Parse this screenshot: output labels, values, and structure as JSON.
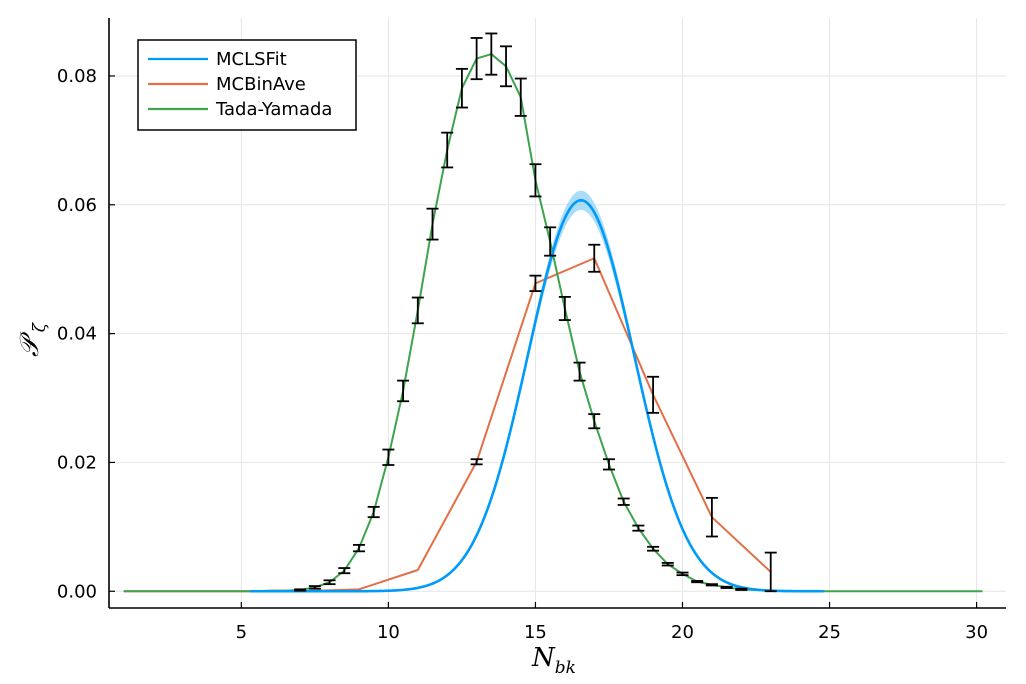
{
  "chart_data": {
    "type": "line",
    "title": "",
    "xlabel": {
      "main": "N",
      "sub": "bk"
    },
    "ylabel": {
      "main": "𝒫",
      "sub": "ζ"
    },
    "xlim": [
      0.5,
      31
    ],
    "ylim": [
      -0.0026,
      0.089
    ],
    "xticks": [
      5,
      10,
      15,
      20,
      25,
      30
    ],
    "xtick_labels": [
      "5",
      "10",
      "15",
      "20",
      "25",
      "30"
    ],
    "yticks": [
      0,
      0.02,
      0.04,
      0.06,
      0.08
    ],
    "ytick_labels": [
      "0.00",
      "0.02",
      "0.04",
      "0.06",
      "0.08"
    ],
    "grid": true,
    "legend_position": "top-left",
    "colors": {
      "mclsfit": "#009af9",
      "mcbinave": "#e26f46",
      "tada": "#3da44d",
      "errorbars": "#000000",
      "band": "#8fd0f5"
    },
    "series": [
      {
        "name": "MCLSFit",
        "kind": "curve",
        "gaussian": {
          "amplitude": 0.0607,
          "mean": 16.55,
          "sigma": 1.8
        },
        "x_range": [
          5.3,
          24.8
        ],
        "band_halfwidth_at_peak": 0.0015
      },
      {
        "name": "MCBinAve",
        "kind": "points",
        "x": [
          1.0,
          3.0,
          5.0,
          7.0,
          9.0,
          11.0,
          13.0,
          15.0,
          17.0,
          19.0,
          21.0,
          23.0
        ],
        "y": [
          0.0,
          0.0,
          0.0,
          0.0,
          0.0003,
          0.0033,
          0.0201,
          0.0478,
          0.0517,
          0.0305,
          0.0115,
          0.003
        ],
        "yerr": [
          0.0,
          0.0,
          0.0,
          0.0,
          0.0,
          0.0,
          0.0004,
          0.0012,
          0.0021,
          0.0028,
          0.003,
          0.003
        ]
      },
      {
        "name": "Tada-Yamada",
        "kind": "points",
        "x": [
          1.0,
          1.5,
          2.0,
          2.5,
          3.0,
          3.5,
          4.0,
          4.5,
          5.0,
          5.5,
          6.0,
          6.5,
          7.0,
          7.5,
          8.0,
          8.5,
          9.0,
          9.5,
          10.0,
          10.5,
          11.0,
          11.5,
          12.0,
          12.5,
          13.0,
          13.5,
          14.0,
          14.5,
          15.0,
          15.5,
          16.0,
          16.5,
          17.0,
          17.5,
          18.0,
          18.5,
          19.0,
          19.5,
          20.0,
          20.5,
          21.0,
          21.5,
          22.0,
          22.5,
          23.0,
          23.5,
          24.0,
          24.5,
          25.0,
          25.5,
          26.0,
          26.5,
          27.0,
          27.5,
          28.0,
          28.5,
          29.0,
          29.5,
          30.0,
          30.2
        ],
        "y": [
          0.0,
          0.0,
          0.0,
          0.0,
          0.0,
          0.0,
          0.0,
          0.0,
          0.0,
          0.0,
          0.0001,
          0.0001,
          0.0002,
          0.0006,
          0.0014,
          0.0032,
          0.0067,
          0.0123,
          0.0208,
          0.0311,
          0.0436,
          0.057,
          0.0685,
          0.0781,
          0.0827,
          0.0834,
          0.0815,
          0.0767,
          0.0638,
          0.0543,
          0.0439,
          0.0341,
          0.0264,
          0.0197,
          0.0139,
          0.0098,
          0.0066,
          0.0042,
          0.0027,
          0.0015,
          0.001,
          0.0006,
          0.0003,
          0.0002,
          0.0001,
          0.0,
          0.0,
          0.0,
          0.0,
          0.0,
          0.0,
          0.0,
          0.0,
          0.0,
          0.0,
          0.0,
          0.0,
          0.0,
          0.0,
          0.0
        ],
        "yerr": [
          0,
          0,
          0,
          0,
          0,
          0,
          0,
          0,
          0,
          0,
          0,
          0,
          0.0001,
          0.0002,
          0.0003,
          0.0004,
          0.0005,
          0.0008,
          0.0012,
          0.0016,
          0.002,
          0.0024,
          0.0027,
          0.003,
          0.0032,
          0.0032,
          0.0031,
          0.0029,
          0.0025,
          0.0022,
          0.0018,
          0.0014,
          0.0011,
          0.0008,
          0.0005,
          0.0004,
          0.0003,
          0.0002,
          0.0002,
          0.0001,
          0.0001,
          0.0001,
          0.0001,
          0,
          0,
          0,
          0,
          0,
          0,
          0,
          0,
          0,
          0,
          0,
          0,
          0,
          0,
          0,
          0,
          0
        ]
      }
    ]
  },
  "legend": {
    "items": [
      {
        "label": "MCLSFit",
        "color": "#009af9"
      },
      {
        "label": "MCBinAve",
        "color": "#e26f46"
      },
      {
        "label": "Tada-Yamada",
        "color": "#3da44d"
      }
    ]
  }
}
